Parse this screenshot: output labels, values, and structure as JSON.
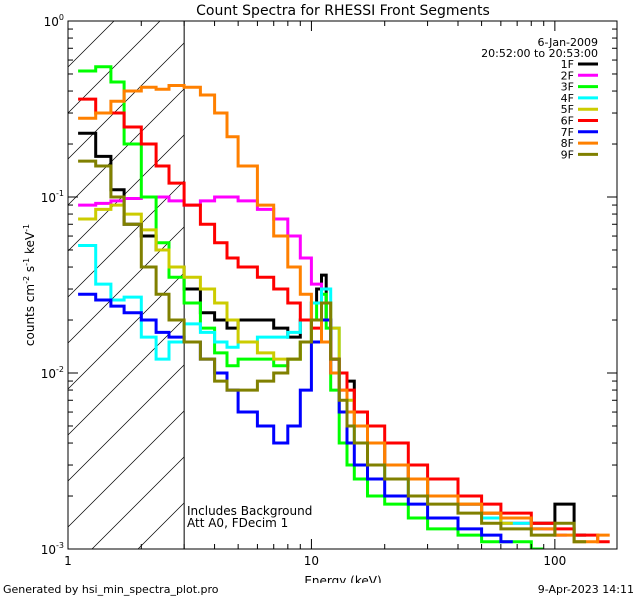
{
  "chart_data": {
    "type": "line",
    "title": "Count Spectra for RHESSI Front Segments",
    "xlabel": "Energy (keV)",
    "ylabel_parts": [
      "counts cm",
      "-2",
      " s",
      "-1",
      " keV",
      "-1"
    ],
    "xscale": "log",
    "yscale": "log",
    "xlim": [
      1.0,
      180
    ],
    "ylim": [
      0.001,
      1.0
    ],
    "x_ticks": [
      {
        "v": 1,
        "label": "1"
      },
      {
        "v": 10,
        "label": "10"
      },
      {
        "v": 100,
        "label": "100"
      }
    ],
    "y_ticks": [
      {
        "v": 1,
        "base": "10",
        "exp": "0"
      },
      {
        "v": 0.1,
        "base": "10",
        "exp": "-1"
      },
      {
        "v": 0.01,
        "base": "10",
        "exp": "-2"
      },
      {
        "v": 0.001,
        "base": "10",
        "exp": "-3"
      }
    ],
    "hatch_region_x": [
      1.0,
      3.0
    ],
    "annotation_date": "6-Jan-2009",
    "annotation_time": "20:52:00 to 20:53:00",
    "note_lines": [
      "Includes Background",
      "Att A0, FDecim 1"
    ],
    "legend_position": "top-right",
    "series": [
      {
        "name": "1F",
        "color": "#000000",
        "x": [
          1.1,
          1.3,
          1.5,
          1.7,
          2.0,
          2.3,
          2.6,
          3.0,
          3.5,
          4.0,
          4.5,
          5.0,
          6.0,
          7.0,
          8.0,
          9.0,
          10.0,
          10.5,
          11.0,
          11.5,
          12.0,
          13.0,
          14.0,
          15.0,
          17.0,
          20.0,
          25.0,
          30.0,
          40.0,
          50.0,
          60.0,
          80.0,
          100.0,
          120.0
        ],
        "y": [
          0.23,
          0.17,
          0.11,
          0.07,
          0.06,
          0.05,
          0.04,
          0.03,
          0.022,
          0.02,
          0.018,
          0.02,
          0.02,
          0.018,
          0.016,
          0.02,
          0.025,
          0.03,
          0.036,
          0.02,
          0.012,
          0.01,
          0.009,
          0.006,
          0.004,
          0.003,
          0.0025,
          0.002,
          0.0018,
          0.0016,
          0.0015,
          0.0014,
          0.0018,
          0.0012
        ]
      },
      {
        "name": "2F",
        "color": "#ff00ff",
        "x": [
          1.1,
          1.3,
          1.5,
          1.7,
          2.0,
          2.3,
          2.6,
          3.0,
          3.5,
          4.0,
          4.5,
          5.0,
          6.0,
          7.0,
          8.0,
          9.0,
          10.0,
          11.0,
          12.0,
          13.0,
          14.0,
          15.0,
          17.0,
          20.0,
          25.0,
          30.0,
          40.0,
          50.0,
          60.0,
          80.0,
          100.0
        ],
        "y": [
          0.09,
          0.092,
          0.095,
          0.098,
          0.1,
          0.1,
          0.095,
          0.09,
          0.095,
          0.1,
          0.1,
          0.095,
          0.085,
          0.075,
          0.06,
          0.045,
          0.032,
          0.02,
          0.012,
          0.008,
          0.006,
          0.005,
          0.004,
          0.003,
          0.0025,
          0.002,
          0.0018,
          0.0016,
          0.0014,
          0.0013,
          0.0012
        ]
      },
      {
        "name": "3F",
        "color": "#00ff00",
        "x": [
          1.1,
          1.3,
          1.5,
          1.7,
          2.0,
          2.3,
          2.6,
          3.0,
          3.5,
          4.0,
          4.5,
          5.0,
          6.0,
          7.0,
          8.0,
          9.0,
          10.0,
          10.5,
          11.0,
          11.5,
          12.0,
          13.0,
          14.0,
          15.0,
          17.0,
          20.0,
          25.0,
          30.0,
          40.0,
          50.0,
          60.0,
          80.0
        ],
        "y": [
          0.52,
          0.55,
          0.45,
          0.2,
          0.1,
          0.055,
          0.035,
          0.025,
          0.018,
          0.013,
          0.011,
          0.012,
          0.012,
          0.011,
          0.012,
          0.015,
          0.02,
          0.025,
          0.028,
          0.018,
          0.008,
          0.004,
          0.003,
          0.0025,
          0.002,
          0.0018,
          0.0015,
          0.0013,
          0.0012,
          0.0011,
          0.0011,
          0.001
        ]
      },
      {
        "name": "4F",
        "color": "#00ffff",
        "x": [
          1.1,
          1.3,
          1.5,
          1.7,
          2.0,
          2.3,
          2.6,
          3.0,
          3.5,
          4.0,
          4.5,
          5.0,
          6.0,
          7.0,
          8.0,
          9.0,
          10.0,
          11.0,
          12.0,
          13.0,
          14.0,
          15.0,
          17.0,
          20.0,
          25.0,
          30.0,
          40.0,
          50.0,
          60.0,
          80.0
        ],
        "y": [
          0.053,
          0.032,
          0.026,
          0.027,
          0.016,
          0.012,
          0.015,
          0.019,
          0.017,
          0.015,
          0.014,
          0.015,
          0.016,
          0.016,
          0.017,
          0.02,
          0.025,
          0.03,
          0.018,
          0.01,
          0.006,
          0.004,
          0.003,
          0.0025,
          0.002,
          0.0025,
          0.0018,
          0.0015,
          0.0014,
          0.0013
        ]
      },
      {
        "name": "5F",
        "color": "#cccc00",
        "x": [
          1.1,
          1.3,
          1.5,
          1.7,
          2.0,
          2.3,
          2.6,
          3.0,
          3.5,
          4.0,
          4.5,
          5.0,
          6.0,
          7.0,
          8.0,
          9.0,
          10.0,
          11.0,
          12.0,
          13.0,
          14.0,
          15.0,
          17.0,
          20.0,
          25.0,
          30.0,
          40.0,
          50.0,
          60.0
        ],
        "y": [
          0.075,
          0.085,
          0.09,
          0.08,
          0.065,
          0.05,
          0.04,
          0.035,
          0.03,
          0.025,
          0.02,
          0.015,
          0.013,
          0.012,
          0.012,
          0.015,
          0.02,
          0.025,
          0.018,
          0.01,
          0.007,
          0.005,
          0.004,
          0.003,
          0.0025,
          0.002,
          0.0018,
          0.0016,
          0.0014
        ]
      },
      {
        "name": "6F",
        "color": "#ff0000",
        "x": [
          1.1,
          1.3,
          1.5,
          1.7,
          2.0,
          2.3,
          2.6,
          3.0,
          3.5,
          4.0,
          4.5,
          5.0,
          6.0,
          7.0,
          8.0,
          9.0,
          10.0,
          11.0,
          12.0,
          13.0,
          14.0,
          15.0,
          17.0,
          20.0,
          25.0,
          30.0,
          40.0,
          50.0,
          60.0,
          80.0,
          100.0,
          120.0,
          150.0
        ],
        "y": [
          0.36,
          0.3,
          0.3,
          0.25,
          0.2,
          0.15,
          0.12,
          0.09,
          0.07,
          0.055,
          0.045,
          0.04,
          0.035,
          0.03,
          0.025,
          0.02,
          0.018,
          0.015,
          0.012,
          0.01,
          0.008,
          0.006,
          0.005,
          0.004,
          0.003,
          0.0025,
          0.002,
          0.0018,
          0.0016,
          0.0014,
          0.0013,
          0.0012,
          0.0011
        ]
      },
      {
        "name": "7F",
        "color": "#0000ff",
        "x": [
          1.1,
          1.3,
          1.5,
          1.7,
          2.0,
          2.3,
          2.6,
          3.0,
          3.5,
          4.0,
          4.5,
          5.0,
          6.0,
          7.0,
          8.0,
          9.0,
          10.0,
          11.0,
          12.0,
          13.0,
          14.0,
          15.0,
          17.0,
          20.0,
          25.0,
          30.0,
          40.0,
          50.0,
          60.0
        ],
        "y": [
          0.028,
          0.026,
          0.024,
          0.022,
          0.02,
          0.017,
          0.016,
          0.015,
          0.012,
          0.01,
          0.008,
          0.006,
          0.005,
          0.004,
          0.005,
          0.008,
          0.015,
          0.02,
          0.01,
          0.006,
          0.004,
          0.003,
          0.0025,
          0.002,
          0.0018,
          0.0015,
          0.0013,
          0.0012,
          0.0011
        ]
      },
      {
        "name": "8F",
        "color": "#ff8000",
        "x": [
          1.1,
          1.3,
          1.5,
          1.7,
          2.0,
          2.3,
          2.6,
          3.0,
          3.5,
          4.0,
          4.5,
          5.0,
          6.0,
          7.0,
          8.0,
          9.0,
          10.0,
          11.0,
          12.0,
          13.0,
          14.0,
          15.0,
          17.0,
          20.0,
          25.0,
          30.0,
          40.0,
          50.0,
          60.0,
          80.0,
          100.0,
          120.0,
          150.0
        ],
        "y": [
          0.28,
          0.3,
          0.35,
          0.4,
          0.42,
          0.41,
          0.43,
          0.42,
          0.38,
          0.3,
          0.22,
          0.15,
          0.09,
          0.06,
          0.04,
          0.028,
          0.02,
          0.015,
          0.01,
          0.008,
          0.006,
          0.005,
          0.004,
          0.003,
          0.0025,
          0.002,
          0.0018,
          0.0016,
          0.0015,
          0.0013,
          0.0012,
          0.0011,
          0.0012
        ]
      },
      {
        "name": "9F",
        "color": "#808000",
        "x": [
          1.1,
          1.3,
          1.5,
          1.7,
          2.0,
          2.3,
          2.6,
          3.0,
          3.5,
          4.0,
          4.5,
          5.0,
          6.0,
          7.0,
          8.0,
          9.0,
          10.0,
          11.0,
          12.0,
          13.0,
          14.0,
          15.0,
          17.0,
          20.0,
          25.0,
          30.0,
          40.0,
          50.0,
          60.0,
          80.0,
          100.0,
          120.0
        ],
        "y": [
          0.16,
          0.15,
          0.1,
          0.07,
          0.04,
          0.028,
          0.02,
          0.015,
          0.012,
          0.009,
          0.008,
          0.008,
          0.009,
          0.01,
          0.012,
          0.015,
          0.02,
          0.025,
          0.012,
          0.007,
          0.005,
          0.004,
          0.003,
          0.0025,
          0.002,
          0.0018,
          0.0016,
          0.0014,
          0.0013,
          0.0012,
          0.0014,
          0.0011
        ]
      }
    ]
  },
  "footer": {
    "left": "Generated by hsi_min_spectra_plot.pro",
    "right": "9-Apr-2023 14:11"
  }
}
